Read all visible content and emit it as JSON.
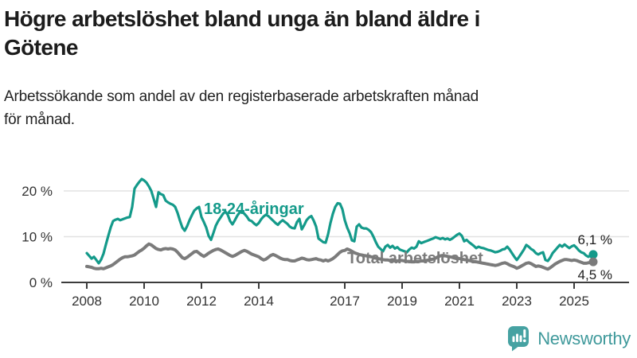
{
  "header": {
    "title": "Högre arbetslöshet bland unga än bland äldre i\nGötene",
    "subtitle": "Arbetssökande som andel av den registerbaserade arbetskraften månad\nför månad."
  },
  "chart_data": {
    "type": "line",
    "unit": "%",
    "x_unit": "month",
    "x_start": "2008-01",
    "x_end": "2025-09",
    "ylim": [
      0,
      24
    ],
    "grid": "horizontal",
    "legend_position": "inline-labels",
    "x_ticks": [
      {
        "year": 2008,
        "label": "2008"
      },
      {
        "year": 2010,
        "label": "2010"
      },
      {
        "year": 2012,
        "label": "2012"
      },
      {
        "year": 2014,
        "label": "2014"
      },
      {
        "year": 2017,
        "label": "2017"
      },
      {
        "year": 2019,
        "label": "2019"
      },
      {
        "year": 2021,
        "label": "2021"
      },
      {
        "year": 2023,
        "label": "2023"
      },
      {
        "year": 2025,
        "label": "2025"
      }
    ],
    "y_ticks": [
      {
        "value": 0,
        "label": "0 %"
      },
      {
        "value": 10,
        "label": "10 %"
      },
      {
        "value": 20,
        "label": "20 %"
      }
    ],
    "series": [
      {
        "id": "youth",
        "name": "18-24-åringar",
        "color": "#149a8a",
        "end_label": "6,1 %",
        "end_value": 6.1,
        "values": [
          6.4,
          5.8,
          5.2,
          5.6,
          4.9,
          4.2,
          5.0,
          6.3,
          8.3,
          10.2,
          12.0,
          13.4,
          13.7,
          13.9,
          13.6,
          13.8,
          14.0,
          14.2,
          14.3,
          16.5,
          20.5,
          21.3,
          22.0,
          22.6,
          22.3,
          21.8,
          21.0,
          20.0,
          18.3,
          16.5,
          19.7,
          19.3,
          19.1,
          17.9,
          17.5,
          17.2,
          17.0,
          16.5,
          15.2,
          13.5,
          12.0,
          11.3,
          12.3,
          13.6,
          14.7,
          15.7,
          16.2,
          16.5,
          14.3,
          13.2,
          12.0,
          10.2,
          9.3,
          10.8,
          12.4,
          13.4,
          14.2,
          15.0,
          15.5,
          14.8,
          13.4,
          12.7,
          13.6,
          14.6,
          15.3,
          15.5,
          15.0,
          14.4,
          13.6,
          13.4,
          12.9,
          12.5,
          13.0,
          13.8,
          14.4,
          14.8,
          14.5,
          14.0,
          13.5,
          13.0,
          12.6,
          13.2,
          13.6,
          13.2,
          12.8,
          12.2,
          11.9,
          11.8,
          13.2,
          13.9,
          11.6,
          12.5,
          13.6,
          14.2,
          14.5,
          13.5,
          12.2,
          9.6,
          9.2,
          8.8,
          8.7,
          10.5,
          13.0,
          15.0,
          16.5,
          17.3,
          17.2,
          16.0,
          13.6,
          12.0,
          10.8,
          9.2,
          9.0,
          12.2,
          12.7,
          12.0,
          11.8,
          11.8,
          11.5,
          11.0,
          10.0,
          8.8,
          7.8,
          7.3,
          6.8,
          7.8,
          8.2,
          7.6,
          8.0,
          7.4,
          7.7,
          7.2,
          7.0,
          6.8,
          6.6,
          7.2,
          7.6,
          7.4,
          7.8,
          9.0,
          8.6,
          8.8,
          9.0,
          9.2,
          9.4,
          9.6,
          9.9,
          9.7,
          9.5,
          9.7,
          9.4,
          9.6,
          9.3,
          9.6,
          10.0,
          10.4,
          10.7,
          10.2,
          9.0,
          9.3,
          8.8,
          8.4,
          8.0,
          7.5,
          7.8,
          7.6,
          7.5,
          7.3,
          7.1,
          7.0,
          6.8,
          6.6,
          6.7,
          6.9,
          7.2,
          7.3,
          7.8,
          7.2,
          6.4,
          5.6,
          4.9,
          5.6,
          6.4,
          7.2,
          8.2,
          7.8,
          7.3,
          7.0,
          6.4,
          6.1,
          6.4,
          6.6,
          4.9,
          4.7,
          5.4,
          6.4,
          7.0,
          7.6,
          8.2,
          7.8,
          8.3,
          7.9,
          7.5,
          7.9,
          8.1,
          7.6,
          7.0,
          6.6,
          6.4,
          5.9,
          5.6,
          6.0,
          6.1
        ]
      },
      {
        "id": "total",
        "name": "Total arbetslöshet",
        "color": "#7b7b7b",
        "end_label": "4,5 %",
        "end_value": 4.5,
        "values": [
          3.5,
          3.4,
          3.3,
          3.1,
          3.0,
          3.0,
          3.1,
          3.0,
          3.2,
          3.4,
          3.6,
          3.9,
          4.3,
          4.7,
          5.1,
          5.4,
          5.6,
          5.6,
          5.7,
          5.8,
          6.0,
          6.4,
          6.8,
          7.1,
          7.5,
          8.0,
          8.4,
          8.2,
          7.8,
          7.4,
          7.2,
          7.1,
          7.3,
          7.4,
          7.3,
          7.4,
          7.3,
          7.1,
          6.6,
          6.0,
          5.4,
          5.2,
          5.5,
          5.9,
          6.3,
          6.7,
          6.8,
          6.4,
          6.0,
          5.7,
          6.0,
          6.4,
          6.7,
          7.0,
          7.2,
          7.3,
          7.1,
          6.8,
          6.5,
          6.2,
          5.9,
          5.7,
          5.9,
          6.2,
          6.5,
          6.8,
          7.0,
          6.8,
          6.5,
          6.2,
          6.0,
          5.8,
          5.6,
          5.2,
          4.9,
          5.1,
          5.5,
          5.9,
          6.1,
          5.9,
          5.6,
          5.3,
          5.1,
          5.0,
          5.0,
          4.8,
          4.7,
          4.7,
          4.9,
          5.1,
          5.3,
          5.2,
          5.0,
          4.9,
          5.0,
          5.1,
          5.2,
          5.0,
          4.9,
          4.7,
          4.9,
          4.7,
          4.9,
          5.2,
          5.6,
          6.1,
          6.6,
          6.9,
          7.0,
          7.3,
          7.1,
          6.8,
          6.5,
          6.3,
          6.1,
          6.0,
          5.9,
          5.8,
          5.7,
          5.6,
          5.5,
          5.3,
          5.2,
          5.1,
          5.0,
          4.9,
          4.9,
          4.8,
          4.8,
          4.7,
          4.7,
          4.8,
          4.8,
          4.7,
          4.6,
          4.6,
          4.5,
          4.5,
          4.6,
          4.6,
          4.7,
          4.7,
          4.8,
          4.9,
          5.0,
          5.1,
          5.3,
          5.6,
          5.8,
          5.9,
          5.8,
          5.7,
          5.6,
          5.5,
          5.4,
          5.3,
          5.2,
          5.1,
          5.0,
          4.9,
          4.8,
          4.7,
          4.6,
          4.5,
          4.4,
          4.3,
          4.2,
          4.1,
          4.0,
          3.9,
          3.8,
          3.7,
          3.8,
          4.0,
          4.2,
          4.3,
          4.1,
          3.8,
          3.6,
          3.4,
          3.1,
          3.3,
          3.6,
          3.9,
          4.2,
          4.3,
          4.1,
          3.8,
          3.5,
          3.6,
          3.5,
          3.3,
          3.1,
          2.9,
          3.2,
          3.6,
          4.0,
          4.3,
          4.6,
          4.8,
          5.0,
          5.0,
          4.9,
          4.8,
          4.9,
          4.8,
          4.6,
          4.4,
          4.2,
          4.2,
          4.3,
          4.4,
          4.5
        ]
      }
    ]
  },
  "footer": {
    "brand": "Newsworthy",
    "logo_icon": "bar-chart-speech-bubble-icon"
  },
  "colors": {
    "youth_line": "#149a8a",
    "total_line": "#7b7b7b",
    "grid": "#e2e2e2",
    "axis": "#3c3c3c",
    "logo": "#46a2a2",
    "wordmark": "#3f999b"
  }
}
